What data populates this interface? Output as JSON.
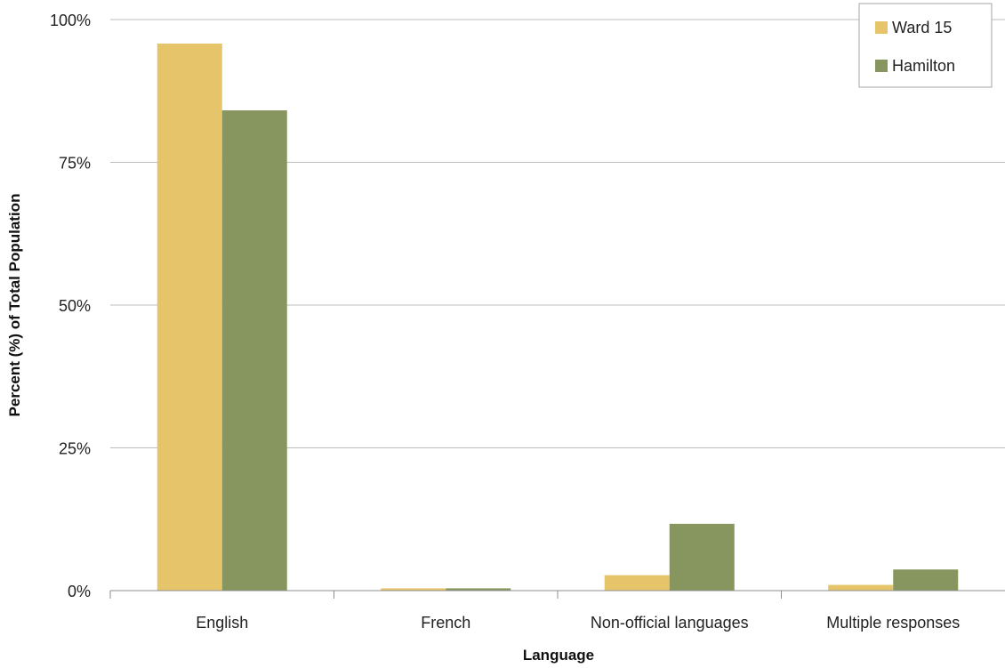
{
  "chart_data": {
    "type": "bar",
    "title": "",
    "xlabel": "Language",
    "ylabel": "Percent (%) of Total Population",
    "categories": [
      "English",
      "French",
      "Non-official languages",
      "Multiple responses"
    ],
    "series": [
      {
        "name": "Ward 15",
        "color": "#E6C46A",
        "values": [
          95.8,
          0.4,
          2.7,
          1.0
        ]
      },
      {
        "name": "Hamilton",
        "color": "#87955F",
        "values": [
          84.1,
          0.4,
          11.7,
          3.7
        ]
      }
    ],
    "ylim": [
      0,
      100
    ],
    "yticks": [
      0,
      25,
      50,
      75,
      100
    ],
    "ytick_labels": [
      "0%",
      "25%",
      "50%",
      "75%",
      "100%"
    ],
    "grid": true,
    "legend_position": "top-right"
  }
}
